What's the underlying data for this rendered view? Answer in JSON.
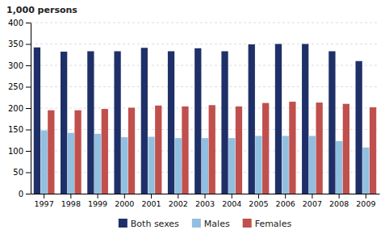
{
  "chart_data": {
    "type": "bar",
    "ylabel": "1,000 persons",
    "categories": [
      "1997",
      "1998",
      "1999",
      "2000",
      "2001",
      "2002",
      "2003",
      "2004",
      "2005",
      "2006",
      "2007",
      "2008",
      "2009"
    ],
    "series": [
      {
        "name": "Both sexes",
        "color": "#1f3068",
        "values": [
          342,
          332,
          333,
          333,
          341,
          333,
          340,
          333,
          349,
          350,
          350,
          333,
          310
        ]
      },
      {
        "name": "Males",
        "color": "#92bfe0",
        "values": [
          148,
          142,
          140,
          132,
          133,
          130,
          130,
          130,
          135,
          135,
          135,
          123,
          108
        ]
      },
      {
        "name": "Females",
        "color": "#c0504d",
        "values": [
          195,
          195,
          198,
          201,
          206,
          204,
          207,
          204,
          212,
          215,
          213,
          210,
          202
        ]
      }
    ],
    "ylim": [
      0,
      400
    ],
    "yticks": [
      0,
      50,
      100,
      150,
      200,
      250,
      300,
      350,
      400
    ],
    "grid": true,
    "legend": "bottom"
  }
}
